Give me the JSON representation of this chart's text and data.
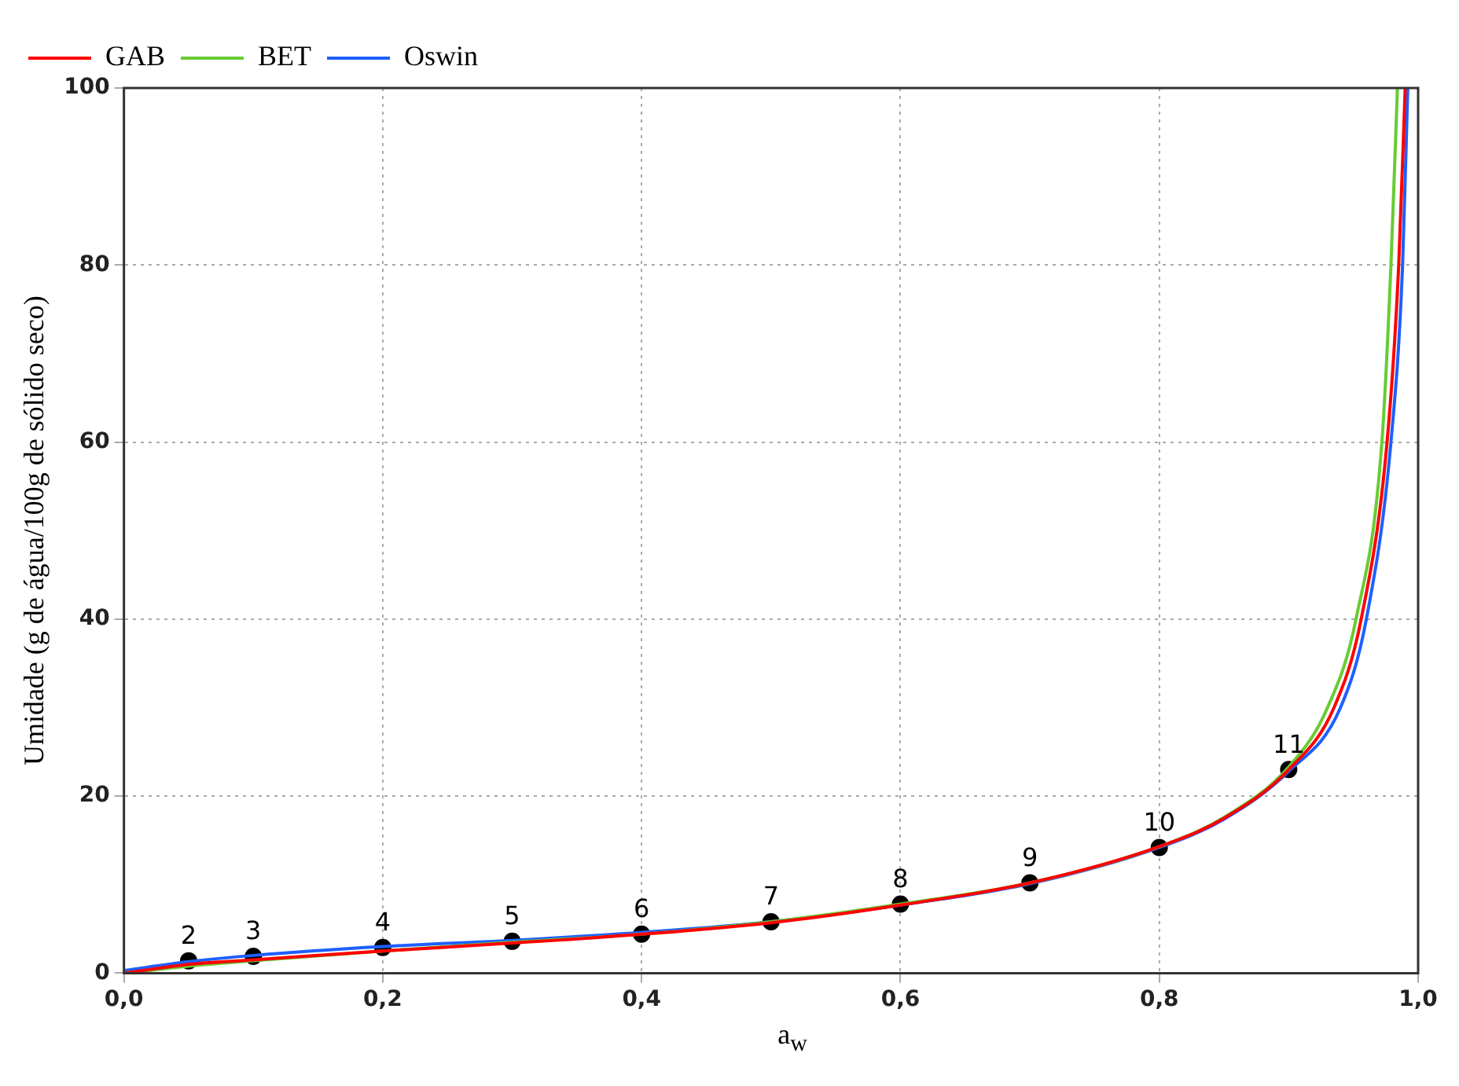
{
  "chart_data": {
    "type": "line",
    "xlabel": "a$_{w}$",
    "ylabel": "Umidade (g de água/100g de sólido seco)",
    "xlim": [
      0,
      1
    ],
    "ylim": [
      0,
      100
    ],
    "xticks": [
      {
        "value": 0,
        "label": "0,0"
      },
      {
        "value": 0.2,
        "label": "0,2"
      },
      {
        "value": 0.4,
        "label": "0,4"
      },
      {
        "value": 0.6,
        "label": "0,6"
      },
      {
        "value": 0.8,
        "label": "0,8"
      },
      {
        "value": 1,
        "label": "1,0"
      }
    ],
    "yticks": [
      0,
      20,
      40,
      60,
      80,
      100
    ],
    "grid": true,
    "legend": "top left",
    "marker": "none",
    "line_style": "solid",
    "series": [
      {
        "name": "GAB",
        "color": "#ff0000",
        "x": [
          0,
          0.05,
          0.1,
          0.2,
          0.3,
          0.4,
          0.5,
          0.6,
          0.7,
          0.8,
          0.85,
          0.9,
          0.935,
          0.956,
          0.976,
          0.985,
          0.99
        ],
        "values": [
          0,
          1,
          1.5,
          2.5,
          3.4,
          4.4,
          5.7,
          7.7,
          10.2,
          14.3,
          17.5,
          23,
          30,
          40,
          60,
          80,
          100
        ]
      },
      {
        "name": "BET",
        "color": "#66cc33",
        "x": [
          0,
          0.05,
          0.1,
          0.2,
          0.3,
          0.4,
          0.5,
          0.6,
          0.7,
          0.8,
          0.85,
          0.9,
          0.93,
          0.952,
          0.972,
          0.979,
          0.984
        ],
        "values": [
          0,
          0.8,
          1.4,
          2.5,
          3.5,
          4.4,
          5.8,
          7.8,
          10.2,
          14.3,
          17.6,
          23.3,
          30,
          40,
          60,
          80,
          100
        ]
      },
      {
        "name": "Oswin",
        "color": "#1f5fff",
        "x": [
          0,
          0.05,
          0.1,
          0.2,
          0.3,
          0.4,
          0.5,
          0.6,
          0.7,
          0.8,
          0.85,
          0.9,
          0.94,
          0.96,
          0.979,
          0.988,
          0.992
        ],
        "values": [
          0.3,
          1.3,
          2,
          3,
          3.7,
          4.6,
          5.8,
          7.7,
          10.1,
          14.2,
          17.4,
          22.8,
          30,
          40,
          60,
          80,
          100
        ]
      },
      {
        "type": "scatter",
        "color": "#000000",
        "marker": "circle",
        "x": [
          0.05,
          0.1,
          0.2,
          0.3,
          0.4,
          0.5,
          0.6,
          0.7,
          0.8,
          0.9
        ],
        "values": [
          1.4,
          1.9,
          2.9,
          3.6,
          4.4,
          5.8,
          7.8,
          10.2,
          14.2,
          23
        ]
      }
    ],
    "annotations": [
      {
        "text": "2",
        "x": 0.05,
        "y": 1.4
      },
      {
        "text": "3",
        "x": 0.1,
        "y": 1.9
      },
      {
        "text": "4",
        "x": 0.2,
        "y": 2.9
      },
      {
        "text": "5",
        "x": 0.3,
        "y": 3.6
      },
      {
        "text": "6",
        "x": 0.4,
        "y": 4.4
      },
      {
        "text": "7",
        "x": 0.5,
        "y": 5.8
      },
      {
        "text": "8",
        "x": 0.6,
        "y": 7.8
      },
      {
        "text": "9",
        "x": 0.7,
        "y": 10.2
      },
      {
        "text": "10",
        "x": 0.8,
        "y": 14.2
      },
      {
        "text": "11",
        "x": 0.9,
        "y": 23
      }
    ]
  }
}
